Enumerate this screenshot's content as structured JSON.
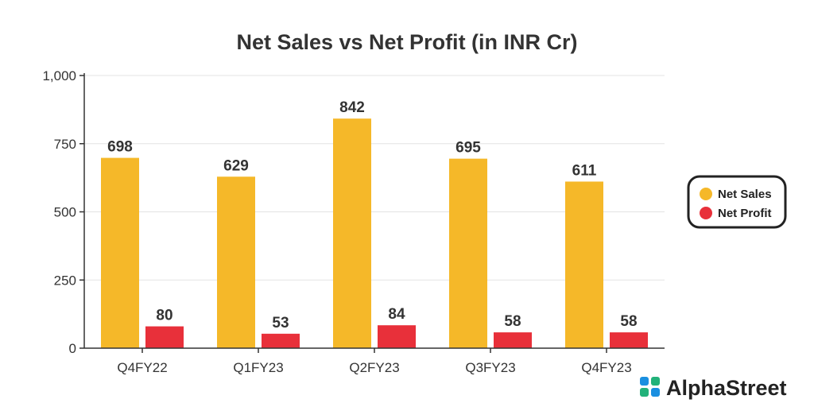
{
  "chart_data": {
    "type": "bar",
    "title": "Net Sales vs Net Profit (in INR Cr)",
    "categories": [
      "Q4FY22",
      "Q1FY23",
      "Q2FY23",
      "Q3FY23",
      "Q4FY23"
    ],
    "series": [
      {
        "name": "Net Sales",
        "values": [
          698,
          629,
          842,
          695,
          611
        ],
        "color": "#F5B829"
      },
      {
        "name": "Net Profit",
        "values": [
          80,
          53,
          84,
          58,
          58
        ],
        "color": "#E8303A"
      }
    ],
    "yticks": [
      "0",
      "250",
      "500",
      "750",
      "1,000"
    ],
    "ytick_values": [
      0,
      250,
      500,
      750,
      1000
    ],
    "ylim": [
      0,
      1000
    ],
    "grid": true,
    "legend_position": "right"
  },
  "brand": {
    "name": "AlphaStreet",
    "icon": "alphastreet-logo-icon",
    "icon_colors": [
      "#1A8FE0",
      "#22B27A"
    ]
  }
}
